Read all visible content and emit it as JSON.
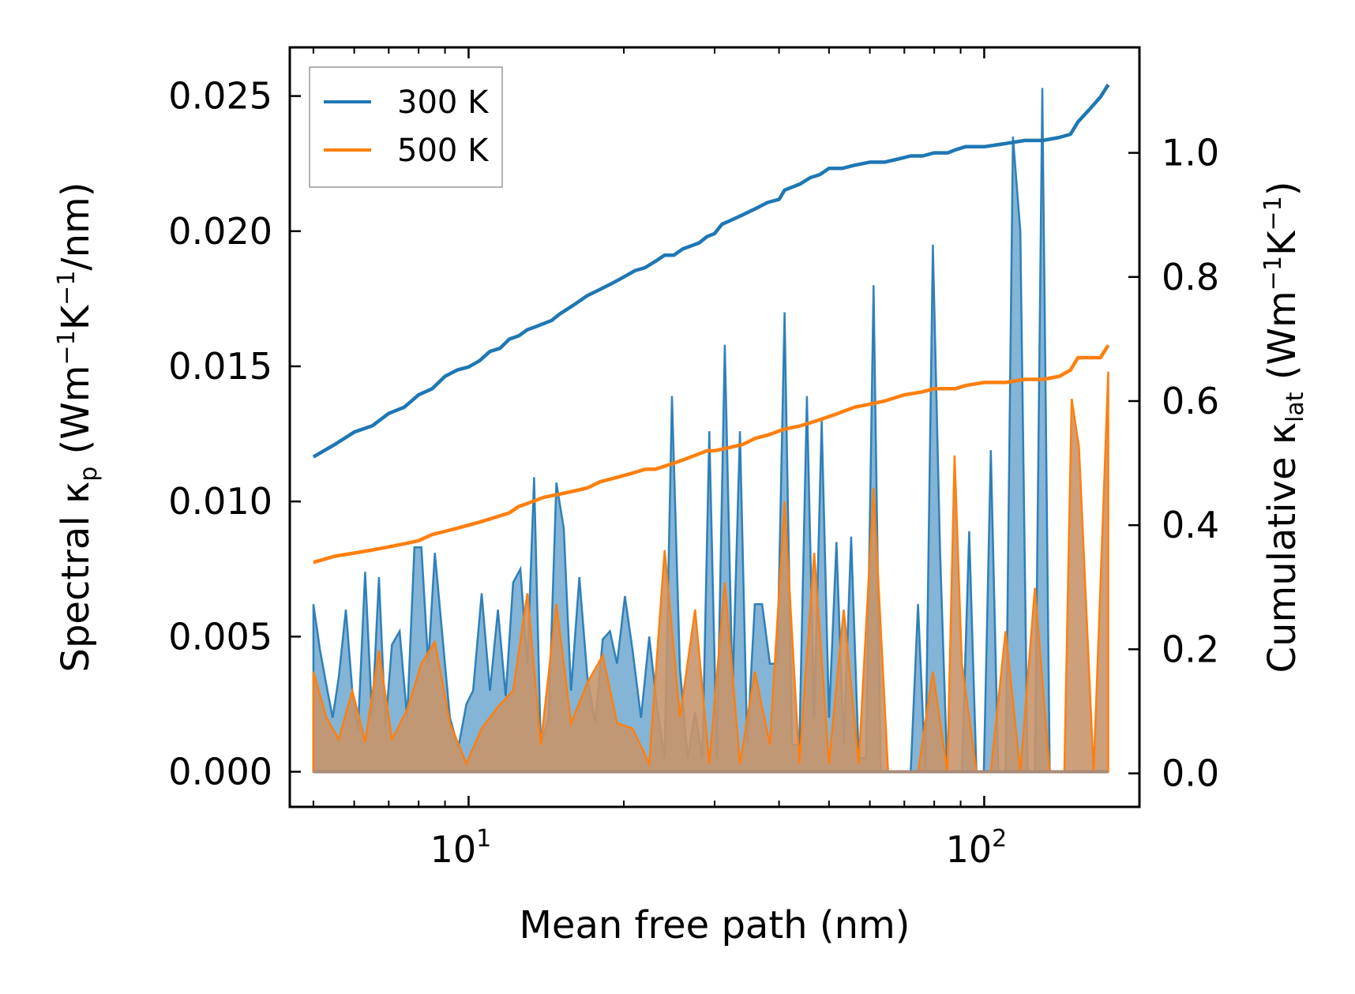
{
  "chart_data": {
    "type": "line",
    "xscale": "log",
    "xlabel": "Mean free path (nm)",
    "ylabel_left": {
      "base": "Spectral κ",
      "sub": "p",
      "rest": " (Wm",
      "sup1": "−1",
      "mid": "K",
      "sup2": "−1",
      "end": "/nm)"
    },
    "ylabel_right": {
      "base": "Cumulative κ",
      "sub": "lat",
      "rest": " (Wm",
      "sup1": "−1",
      "mid": "K",
      "sup2": "−1",
      "end": ")"
    },
    "xlim": [
      4.5,
      200
    ],
    "ylim_left": [
      -0.0013,
      0.0268
    ],
    "ylim_right": [
      -0.054,
      1.17
    ],
    "xticks": [
      {
        "value": 10,
        "base": "10",
        "exp": "1"
      },
      {
        "value": 100,
        "base": "10",
        "exp": "2"
      }
    ],
    "yticks_left": [
      {
        "value": 0.0,
        "label": "0.000"
      },
      {
        "value": 0.005,
        "label": "0.005"
      },
      {
        "value": 0.01,
        "label": "0.010"
      },
      {
        "value": 0.015,
        "label": "0.015"
      },
      {
        "value": 0.02,
        "label": "0.020"
      },
      {
        "value": 0.025,
        "label": "0.025"
      }
    ],
    "yticks_right": [
      {
        "value": 0.0,
        "label": "0.0"
      },
      {
        "value": 0.2,
        "label": "0.2"
      },
      {
        "value": 0.4,
        "label": "0.4"
      },
      {
        "value": 0.6,
        "label": "0.6"
      },
      {
        "value": 0.8,
        "label": "0.8"
      },
      {
        "value": 1.0,
        "label": "1.0"
      }
    ],
    "legend": {
      "location": "top-left",
      "entries": [
        "300 K",
        "500 K"
      ]
    },
    "colors": {
      "300K": "#1f77b4",
      "500K": "#ff7f0e",
      "fill_300K": "#1f77b4",
      "fill_500K": "#c8956b"
    },
    "spectral_300K": {
      "x": [
        5.0,
        5.15,
        5.3,
        5.45,
        5.6,
        5.78,
        5.95,
        6.1,
        6.3,
        6.5,
        6.7,
        6.9,
        7.1,
        7.35,
        7.6,
        7.85,
        8.1,
        8.35,
        8.6,
        8.9,
        9.2,
        9.55,
        9.9,
        10.2,
        10.6,
        11.0,
        11.4,
        11.8,
        12.2,
        12.6,
        13.0,
        13.4,
        13.8,
        14.3,
        14.8,
        15.3,
        15.8,
        16.4,
        17.0,
        17.6,
        18.2,
        18.8,
        19.4,
        20.1,
        20.8,
        21.6,
        22.4,
        23.2,
        24.0,
        24.8,
        25.7,
        26.6,
        27.5,
        28.4,
        29.3,
        30.3,
        31.4,
        32.5,
        33.6,
        34.7,
        35.9,
        37.1,
        38.4,
        39.7,
        41.0,
        42.4,
        43.8,
        45.3,
        46.8,
        48.4,
        50.0,
        51.7,
        53.4,
        55.2,
        57.1,
        59.0,
        61.0,
        63.0,
        65.1,
        67.3,
        69.6,
        72.0,
        74.4,
        76.9,
        79.5,
        82.1,
        84.8,
        87.6,
        90.5,
        93.5,
        96.6,
        99.8,
        103.0,
        106.5,
        110.0,
        113.7,
        117.5,
        121.4,
        125.4,
        129.6,
        134.0,
        138.5,
        143.0,
        147.8,
        152.7,
        157.8,
        163.0,
        168.5,
        174.0
      ],
      "y": [
        0.0062,
        0.0045,
        0.0032,
        0.002,
        0.0035,
        0.006,
        0.003,
        0.0015,
        0.0074,
        0.002,
        0.0072,
        0.0017,
        0.0047,
        0.0052,
        0.002,
        0.0083,
        0.0083,
        0.004,
        0.0081,
        0.005,
        0.002,
        0.0009,
        0.0025,
        0.003,
        0.0066,
        0.003,
        0.006,
        0.0028,
        0.007,
        0.0075,
        0.004,
        0.0109,
        0.001,
        0.002,
        0.0107,
        0.009,
        0.003,
        0.0072,
        0.0035,
        0.0018,
        0.0049,
        0.0052,
        0.004,
        0.0065,
        0.0045,
        0.002,
        0.005,
        0.0024,
        0.0005,
        0.0139,
        0.0038,
        0.0005,
        0.0022,
        0.0005,
        0.0126,
        0.0005,
        0.0158,
        0.003,
        0.0126,
        0.001,
        0.0062,
        0.0062,
        0.004,
        0.004,
        0.017,
        0.001,
        0.001,
        0.0139,
        0.002,
        0.013,
        0.002,
        0.0085,
        0.001,
        0.0087,
        0.0005,
        0.0005,
        0.018,
        0.0,
        0.0,
        0.0,
        0.0,
        0.0,
        0.0062,
        0.0,
        0.0195,
        0.0082,
        0.0,
        0.0,
        0.0,
        0.0089,
        0.0,
        0.0,
        0.0119,
        0.0,
        0.0,
        0.0235,
        0.02,
        0.0,
        0.0,
        0.0253,
        0.0,
        0.0,
        0.0,
        0.0,
        0.0,
        0.0,
        0.0,
        0.0,
        0.0
      ]
    },
    "spectral_500K": {
      "x": [
        5.0,
        5.3,
        5.6,
        5.95,
        6.3,
        6.7,
        7.1,
        7.6,
        8.1,
        8.6,
        9.2,
        9.9,
        10.6,
        11.4,
        12.2,
        13.0,
        13.8,
        14.8,
        15.8,
        17.0,
        18.2,
        19.4,
        20.8,
        22.4,
        24.0,
        25.7,
        27.5,
        29.3,
        31.4,
        33.6,
        35.9,
        38.4,
        41.0,
        43.8,
        46.8,
        50.0,
        53.4,
        57.1,
        61.0,
        65.1,
        69.6,
        74.4,
        79.5,
        84.8,
        87.6,
        90.5,
        96.6,
        103.0,
        110.0,
        117.5,
        125.4,
        134.0,
        143.0,
        147.8,
        152.7,
        163.0,
        174.0
      ],
      "y": [
        0.0037,
        0.002,
        0.0012,
        0.003,
        0.0011,
        0.0045,
        0.0012,
        0.0023,
        0.004,
        0.0048,
        0.0018,
        0.0003,
        0.0016,
        0.0024,
        0.003,
        0.0066,
        0.001,
        0.0062,
        0.0018,
        0.0033,
        0.0043,
        0.0018,
        0.0016,
        0.0003,
        0.0082,
        0.002,
        0.006,
        0.0003,
        0.007,
        0.0003,
        0.0037,
        0.001,
        0.01,
        0.0003,
        0.0081,
        0.0003,
        0.006,
        0.0003,
        0.0105,
        0.0,
        0.0,
        0.0,
        0.0037,
        0.0,
        0.0117,
        0.004,
        0.0,
        0.0,
        0.0052,
        0.0,
        0.0068,
        0.0,
        0.0,
        0.0138,
        0.012,
        0.0,
        0.0148
      ]
    },
    "cumulative_300K": {
      "x": [
        5.0,
        5.5,
        6.0,
        6.5,
        7.0,
        7.5,
        8.0,
        8.5,
        9.0,
        9.5,
        10.0,
        10.5,
        11.0,
        11.5,
        12.0,
        12.5,
        13.0,
        13.5,
        14.0,
        14.5,
        15.0,
        16.0,
        17.0,
        18.0,
        19.0,
        20.0,
        21.0,
        22.0,
        23.0,
        24.0,
        25.0,
        26.0,
        27.0,
        28.0,
        29.0,
        30.0,
        31.0,
        32.0,
        33.0,
        34.0,
        36.0,
        38.0,
        40.0,
        41.0,
        44.0,
        46.0,
        48.0,
        50.0,
        53.0,
        56.0,
        60.0,
        64.0,
        68.0,
        72.0,
        76.0,
        80.0,
        85.0,
        88.0,
        92.0,
        100.0,
        110.0,
        120.0,
        130.0,
        140.0,
        147.0,
        152.0,
        160.0,
        168.0,
        174.0
      ],
      "y": [
        0.51,
        0.53,
        0.55,
        0.56,
        0.58,
        0.59,
        0.61,
        0.62,
        0.64,
        0.65,
        0.655,
        0.665,
        0.68,
        0.685,
        0.7,
        0.705,
        0.715,
        0.72,
        0.725,
        0.73,
        0.74,
        0.755,
        0.77,
        0.78,
        0.79,
        0.8,
        0.81,
        0.815,
        0.825,
        0.835,
        0.835,
        0.845,
        0.85,
        0.855,
        0.865,
        0.87,
        0.885,
        0.89,
        0.895,
        0.9,
        0.91,
        0.92,
        0.925,
        0.94,
        0.95,
        0.96,
        0.965,
        0.975,
        0.975,
        0.98,
        0.985,
        0.985,
        0.99,
        0.995,
        0.995,
        1.0,
        1.0,
        1.005,
        1.01,
        1.01,
        1.015,
        1.02,
        1.02,
        1.025,
        1.03,
        1.05,
        1.07,
        1.09,
        1.11
      ]
    },
    "cumulative_500K": {
      "x": [
        5.0,
        5.5,
        6.0,
        6.5,
        7.0,
        7.5,
        8.0,
        8.5,
        9.0,
        9.5,
        10.0,
        10.5,
        11.0,
        11.5,
        12.0,
        12.5,
        13.0,
        13.5,
        14.0,
        15.0,
        16.0,
        17.0,
        18.0,
        19.0,
        20.0,
        21.0,
        22.0,
        23.0,
        24.0,
        25.0,
        26.0,
        27.0,
        28.0,
        29.0,
        30.0,
        32.0,
        34.0,
        36.0,
        38.0,
        41.0,
        44.0,
        46.0,
        48.0,
        52.0,
        56.0,
        60.0,
        64.0,
        70.0,
        76.0,
        80.0,
        88.0,
        92.0,
        100.0,
        110.0,
        120.0,
        130.0,
        140.0,
        147.0,
        152.0,
        160.0,
        168.0,
        174.0
      ],
      "y": [
        0.34,
        0.35,
        0.355,
        0.36,
        0.365,
        0.37,
        0.375,
        0.385,
        0.39,
        0.395,
        0.4,
        0.405,
        0.41,
        0.415,
        0.42,
        0.43,
        0.435,
        0.44,
        0.445,
        0.45,
        0.455,
        0.46,
        0.47,
        0.475,
        0.48,
        0.485,
        0.49,
        0.49,
        0.495,
        0.5,
        0.505,
        0.51,
        0.515,
        0.52,
        0.52,
        0.525,
        0.53,
        0.54,
        0.545,
        0.555,
        0.56,
        0.565,
        0.57,
        0.58,
        0.59,
        0.595,
        0.6,
        0.61,
        0.615,
        0.62,
        0.62,
        0.625,
        0.63,
        0.63,
        0.635,
        0.635,
        0.64,
        0.65,
        0.67,
        0.67,
        0.67,
        0.69
      ]
    }
  }
}
